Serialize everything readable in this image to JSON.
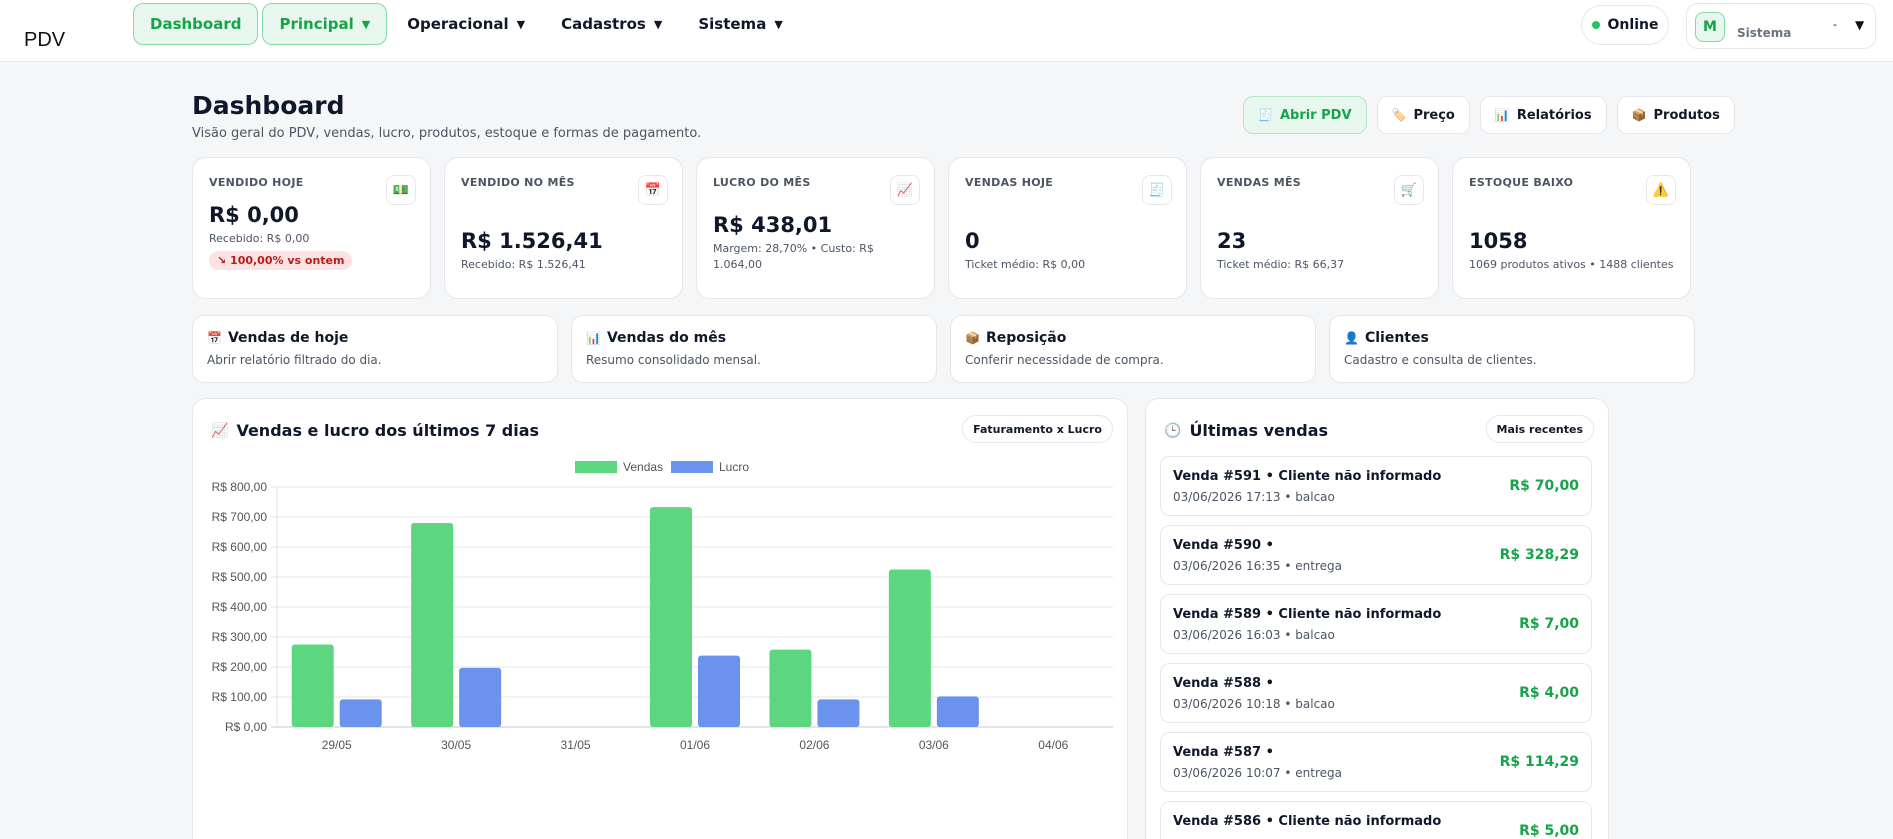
{
  "app": {
    "brand": "PDV"
  },
  "nav": [
    {
      "label": "Dashboard",
      "active": true,
      "caret": false
    },
    {
      "label": "Principal",
      "active": true,
      "caret": true
    },
    {
      "label": "Operacional",
      "active": false,
      "caret": true
    },
    {
      "label": "Cadastros",
      "active": false,
      "caret": true
    },
    {
      "label": "Sistema",
      "active": false,
      "caret": true
    }
  ],
  "status": {
    "online": "Online"
  },
  "user": {
    "initial": "M",
    "role": "Sistema",
    "name": "-"
  },
  "header": {
    "title": "Dashboard",
    "subtitle": "Visão geral do PDV, vendas, lucro, produtos, estoque e formas de pagamento."
  },
  "actions": [
    {
      "label": "Abrir PDV",
      "icon": "receipt-icon"
    },
    {
      "label": "Preço",
      "icon": "tag-icon"
    },
    {
      "label": "Relatórios",
      "icon": "bar-chart-icon"
    },
    {
      "label": "Produtos",
      "icon": "box-icon"
    }
  ],
  "stats": [
    {
      "label": "VENDIDO HOJE",
      "icon": "money-icon",
      "value": "R$ 0,00",
      "sub": "Recebido: R$ 0,00",
      "badge": "↘ 100,00% vs ontem"
    },
    {
      "label": "VENDIDO NO MÊS",
      "icon": "calendar-icon",
      "value": "R$ 1.526,41",
      "sub": "Recebido: R$ 1.526,41"
    },
    {
      "label": "LUCRO DO MÊS",
      "icon": "trend-up-icon",
      "value": "R$ 438,01",
      "sub": "Margem: 28,70% • Custo: R$ 1.064,00"
    },
    {
      "label": "VENDAS HOJE",
      "icon": "receipt-icon",
      "value": "0",
      "sub": "Ticket médio: R$ 0,00"
    },
    {
      "label": "VENDAS MÊS",
      "icon": "cart-icon",
      "value": "23",
      "sub": "Ticket médio: R$ 66,37"
    },
    {
      "label": "ESTOQUE BAIXO",
      "icon": "warning-icon",
      "value": "1058",
      "sub": "1069 produtos ativos • 1488 clientes"
    }
  ],
  "quick_links": [
    {
      "title": "Vendas de hoje",
      "icon": "calendar-icon",
      "desc": "Abrir relatório filtrado do dia."
    },
    {
      "title": "Vendas do mês",
      "icon": "bar-chart-icon",
      "desc": "Resumo consolidado mensal."
    },
    {
      "title": "Reposição",
      "icon": "box-icon",
      "desc": "Conferir necessidade de compra."
    },
    {
      "title": "Clientes",
      "icon": "user-icon",
      "desc": "Cadastro e consulta de clientes."
    }
  ],
  "chart_card": {
    "title": "Vendas e lucro dos últimos 7 dias",
    "toggle": "Faturamento x Lucro"
  },
  "chart_data": {
    "type": "bar",
    "categories": [
      "29/05",
      "30/05",
      "31/05",
      "01/06",
      "02/06",
      "03/06",
      "04/06"
    ],
    "series": [
      {
        "name": "Vendas",
        "color": "#5cd67f",
        "values": [
          275,
          680,
          0,
          733,
          258,
          525,
          0
        ]
      },
      {
        "name": "Lucro",
        "color": "#6b93ee",
        "values": [
          92,
          197,
          0,
          238,
          92,
          102,
          0
        ]
      }
    ],
    "yticks": [
      "R$ 0,00",
      "R$ 100,00",
      "R$ 200,00",
      "R$ 300,00",
      "R$ 400,00",
      "R$ 500,00",
      "R$ 600,00",
      "R$ 700,00",
      "R$ 800,00"
    ],
    "ylim": [
      0,
      800
    ],
    "grid": true,
    "legend": "top-center"
  },
  "sales_card": {
    "title": "Últimas vendas",
    "filter": "Mais recentes"
  },
  "sales": [
    {
      "title": "Venda #591 • Cliente não informado",
      "meta": "03/06/2026 17:13 • balcao",
      "value": "R$ 70,00"
    },
    {
      "title": "Venda #590 •",
      "meta": "03/06/2026 16:35 • entrega",
      "value": "R$ 328,29"
    },
    {
      "title": "Venda #589 • Cliente não informado",
      "meta": "03/06/2026 16:03 • balcao",
      "value": "R$ 7,00"
    },
    {
      "title": "Venda #588 •",
      "meta": "03/06/2026 10:18 • balcao",
      "value": "R$ 4,00"
    },
    {
      "title": "Venda #587 •",
      "meta": "03/06/2026 10:07 • entrega",
      "value": "R$ 114,29"
    },
    {
      "title": "Venda #586 • Cliente não informado",
      "meta": "",
      "value": "R$ 5,00"
    }
  ]
}
